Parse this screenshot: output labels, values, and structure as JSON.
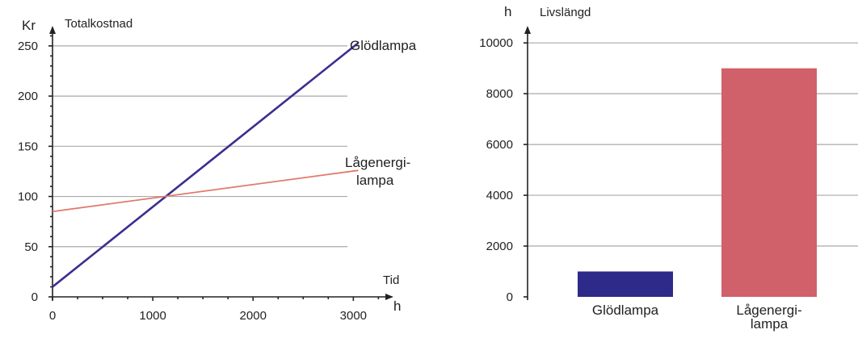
{
  "chart_data": [
    {
      "type": "line",
      "ylabel_unit": "Kr",
      "ylabel": "Totalkostnad",
      "xlabel": "Tid",
      "xlabel_unit": "h",
      "xlim": [
        0,
        3400
      ],
      "ylim": [
        0,
        270
      ],
      "xticks": [
        0,
        1000,
        2000,
        3000
      ],
      "yticks": [
        0,
        50,
        100,
        150,
        200,
        250
      ],
      "grid": true,
      "series": [
        {
          "name": "Glödlampa",
          "label_lines": [
            "Glödlampa"
          ],
          "color": "#3d2d8f",
          "x": [
            0,
            3050
          ],
          "y": [
            10,
            253
          ]
        },
        {
          "name": "Lågenergilampa",
          "label_lines": [
            "Lågenergi-",
            "lampa"
          ],
          "color": "#e07a6a",
          "x": [
            0,
            3050
          ],
          "y": [
            85,
            126
          ]
        }
      ]
    },
    {
      "type": "bar",
      "ylabel_unit": "h",
      "ylabel": "Livslängd",
      "ylim": [
        0,
        10800
      ],
      "yticks": [
        0,
        2000,
        4000,
        6000,
        8000,
        10000
      ],
      "grid": true,
      "categories": [
        {
          "lines": [
            "Glödlampa"
          ]
        },
        {
          "lines": [
            "Lågenergi-",
            "lampa"
          ]
        }
      ],
      "values": [
        1000,
        9000
      ],
      "colors": [
        "#2e2a8a",
        "#d0606a"
      ]
    }
  ]
}
